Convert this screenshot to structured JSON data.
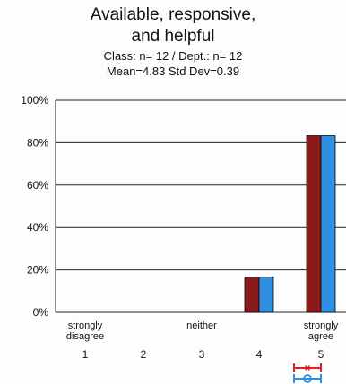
{
  "title_line1": "Available, responsive,",
  "title_line2": "and helpful",
  "stats_line1": "Class: n=  12 / Dept.: n=  12",
  "stats_line2": "Mean=4.83   Std Dev=0.39",
  "chart_data": {
    "type": "bar",
    "categories": [
      "1",
      "2",
      "3",
      "4",
      "5"
    ],
    "category_labels": [
      [
        "strongly",
        "disagree"
      ],
      [],
      [
        "neither"
      ],
      [],
      [
        "strongly",
        "agree"
      ]
    ],
    "series": [
      {
        "values": [
          0,
          0,
          0,
          16.7,
          83.3
        ],
        "color": "#8b1a1a"
      },
      {
        "values": [
          0,
          0,
          0,
          16.7,
          83.3
        ],
        "color": "#2f8fe0"
      }
    ],
    "yticks": [
      "0%",
      "20%",
      "40%",
      "60%",
      "80%",
      "100%"
    ],
    "ylim": [
      0,
      100
    ],
    "grid": true,
    "legend_marker_colors": [
      "#e02020",
      "#2f8fe0"
    ]
  }
}
